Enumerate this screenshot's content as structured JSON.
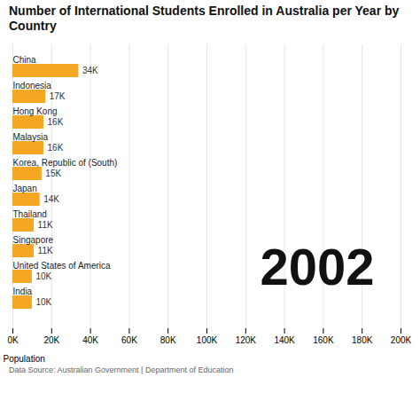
{
  "chart_data": {
    "type": "bar",
    "orientation": "horizontal",
    "title": "Number of International Students Enrolled in Australia per Year by\nCountry",
    "categories": [
      "China",
      "Indonesia",
      "Hong Kong",
      "Malaysia",
      "Korea, Republic of (South)",
      "Japan",
      "Thailand",
      "Singapore",
      "United States of America",
      "India"
    ],
    "values": [
      34000,
      17000,
      16000,
      16000,
      15000,
      14000,
      11000,
      11000,
      10000,
      10000
    ],
    "value_labels": [
      "34K",
      "17K",
      "16K",
      "16K",
      "15K",
      "14K",
      "11K",
      "11K",
      "10K",
      "10K"
    ],
    "data_labels": true,
    "color": "#F5A623",
    "xlabel": "Population",
    "annotations": [
      "2002",
      "Data Source: Australian Government | Department of Education"
    ],
    "xlim": [
      0,
      200000
    ],
    "xticks": [
      {
        "value": 0,
        "label": "0K"
      },
      {
        "value": 20000,
        "label": "20K"
      },
      {
        "value": 40000,
        "label": "40K"
      },
      {
        "value": 60000,
        "label": "60K"
      },
      {
        "value": 80000,
        "label": "80K"
      },
      {
        "value": 100000,
        "label": "100K"
      },
      {
        "value": 120000,
        "label": "120K"
      },
      {
        "value": 140000,
        "label": "140K"
      },
      {
        "value": 160000,
        "label": "160K"
      },
      {
        "value": 180000,
        "label": "180K"
      },
      {
        "value": 200000,
        "label": "200K"
      }
    ],
    "grid": true
  }
}
